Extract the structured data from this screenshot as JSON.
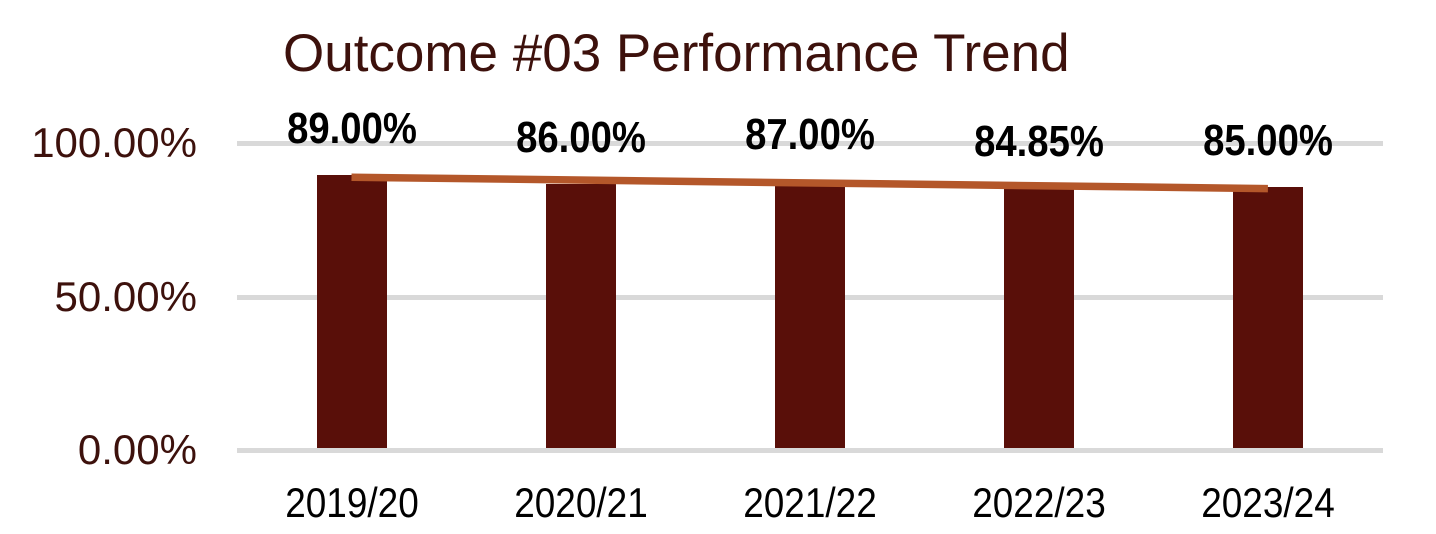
{
  "title": "Outcome #03 Performance Trend",
  "chart_data": {
    "type": "bar",
    "title": "Outcome #03 Performance Trend",
    "categories": [
      "2019/20",
      "2020/21",
      "2021/22",
      "2022/23",
      "2023/24"
    ],
    "series": [
      {
        "name": "performance",
        "type": "bar",
        "values": [
          89.0,
          86.0,
          87.0,
          84.85,
          85.0
        ]
      },
      {
        "name": "linear-trendline",
        "type": "line",
        "endpoints_pct": [
          88.2,
          84.5
        ]
      }
    ],
    "data_labels": [
      "89.00%",
      "86.00%",
      "87.00%",
      "84.85%",
      "85.00%"
    ],
    "y_ticks": [
      "100.00%",
      "50.00%",
      "0.00%"
    ],
    "ylim": [
      0,
      100
    ],
    "grid": true,
    "legend": false,
    "colors": {
      "bar": "#590F09",
      "trendline": "#B4572A",
      "gridline": "#D9D9D9",
      "title_text": "#3D110C",
      "axis_tick_text": "#3D110C",
      "data_label_text": "#000000",
      "category_label_text": "#000000"
    }
  }
}
